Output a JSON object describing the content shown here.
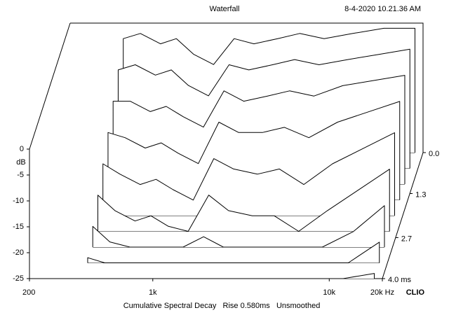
{
  "chart_data": {
    "type": "waterfall",
    "title": "Waterfall",
    "timestamp": "8-4-2020 10.21.36 AM",
    "footer": "Cumulative Spectral Decay   Rise 0.580ms   Unsmoothed",
    "brand": "CLIO",
    "y_label": "dB",
    "log_x": true,
    "color": "#000000",
    "x": [
      400,
      500,
      650,
      800,
      1000,
      1300,
      1700,
      2200,
      3000,
      4000,
      5500,
      8000,
      12000,
      18000
    ],
    "xlim": [
      200,
      20000
    ],
    "xticks": [
      200,
      {
        "value": 1000,
        "label": "1k"
      },
      {
        "value": 10000,
        "label": "10k"
      },
      {
        "value": 20000,
        "label": "20k Hz"
      }
    ],
    "ylim": [
      -25,
      0
    ],
    "yticks": [
      0,
      -5,
      -10,
      -15,
      -20,
      -25
    ],
    "tlim": [
      0,
      4
    ],
    "tticks": [
      {
        "value": 0,
        "label": "0.0"
      },
      1.3,
      2.7,
      {
        "value": 4,
        "label": "4.0 ms"
      }
    ],
    "slices": [
      {
        "time": 0,
        "values": [
          -3,
          -2,
          -4,
          -3,
          -6,
          -8,
          -3,
          -4,
          -3,
          -2,
          -3,
          -2,
          -1,
          -1
        ]
      },
      {
        "time": 0.5,
        "values": [
          -6,
          -5,
          -7,
          -6,
          -9,
          -11,
          -5,
          -6,
          -5,
          -4,
          -5,
          -4,
          -3,
          -2
        ]
      },
      {
        "time": 1,
        "values": [
          -9,
          -9,
          -11,
          -10,
          -12,
          -14,
          -7,
          -9,
          -8,
          -7,
          -8,
          -6,
          -5,
          -4
        ]
      },
      {
        "time": 1.5,
        "values": [
          -12,
          -13,
          -15,
          -14,
          -16,
          -18,
          -10,
          -12,
          -12,
          -11,
          -13,
          -10,
          -8,
          -6
        ]
      },
      {
        "time": 2,
        "values": [
          -15,
          -17,
          -19,
          -18,
          -20,
          -22,
          -14,
          -16,
          -17,
          -16,
          -19,
          -15,
          -12,
          -9
        ]
      },
      {
        "time": 2.5,
        "values": [
          -18,
          -21,
          -23,
          -22,
          -24,
          -25,
          -18,
          -21,
          -22,
          -22,
          -25,
          -21,
          -17,
          -13
        ]
      },
      {
        "time": 3,
        "values": [
          -21,
          -24,
          -25,
          -25,
          -25,
          -25,
          -23,
          -25,
          -25,
          -25,
          -25,
          -25,
          -22,
          -17
        ]
      },
      {
        "time": 3.5,
        "values": [
          -24,
          -25,
          -25,
          -25,
          -25,
          -25,
          -25,
          -25,
          -25,
          -25,
          -25,
          -25,
          -25,
          -21
        ]
      },
      {
        "time": 4,
        "values": [
          -25,
          -25,
          -25,
          -25,
          -25,
          -25,
          -25,
          -25,
          -25,
          -25,
          -25,
          -25,
          -25,
          -24
        ]
      }
    ]
  }
}
